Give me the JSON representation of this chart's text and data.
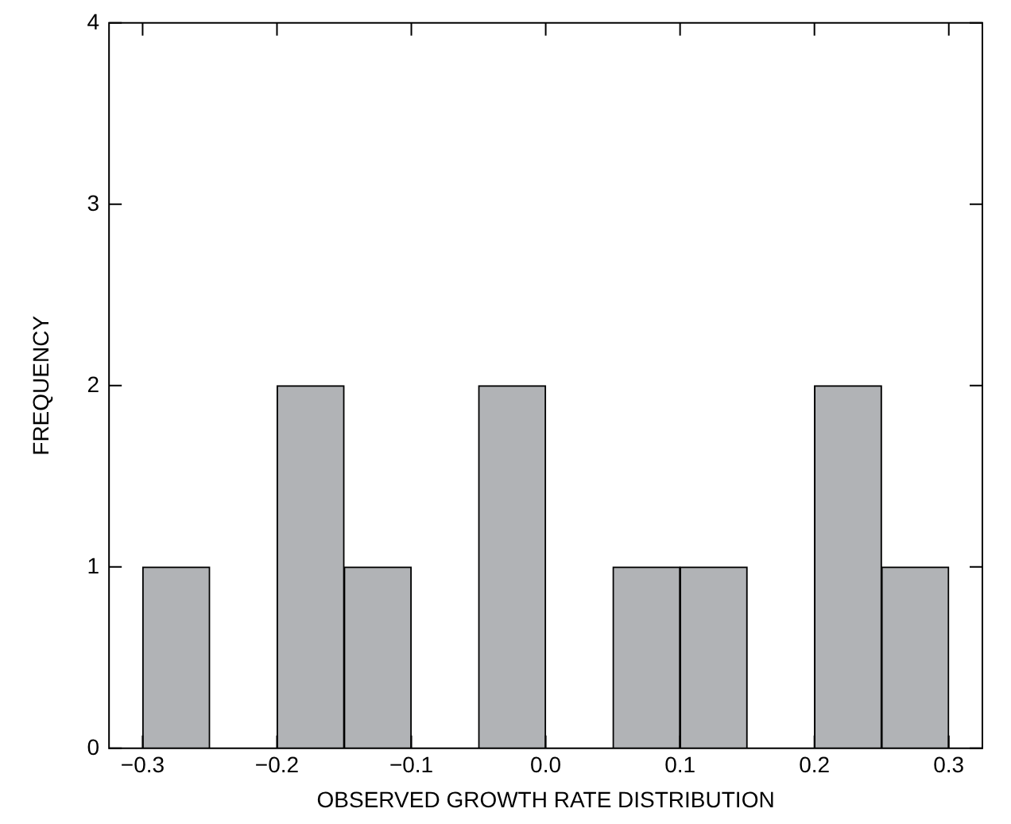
{
  "chart_data": {
    "type": "histogram",
    "xlabel": "OBSERVED GROWTH RATE DISTRIBUTION",
    "ylabel": "FREQUENCY",
    "bins": [
      -0.3,
      -0.25,
      -0.2,
      -0.15,
      -0.1,
      -0.05,
      0,
      0.05,
      0.1,
      0.15,
      0.2,
      0.25,
      0.3
    ],
    "values": [
      1,
      0,
      2,
      1,
      0,
      2,
      0,
      1,
      1,
      0,
      2,
      1
    ],
    "color": "#b1b3b6",
    "xlim": [
      -0.325,
      0.325
    ],
    "xticks": [
      {
        "value": -0.3,
        "label": "−0.3"
      },
      {
        "value": -0.2,
        "label": "−0.2"
      },
      {
        "value": -0.1,
        "label": "−0.1"
      },
      {
        "value": 0,
        "label": "0.0"
      },
      0.1,
      0.2,
      0.3
    ],
    "ylim": [
      0,
      4
    ],
    "yticks": [
      0,
      1,
      2,
      3,
      4
    ],
    "grid": false,
    "legend": false
  }
}
